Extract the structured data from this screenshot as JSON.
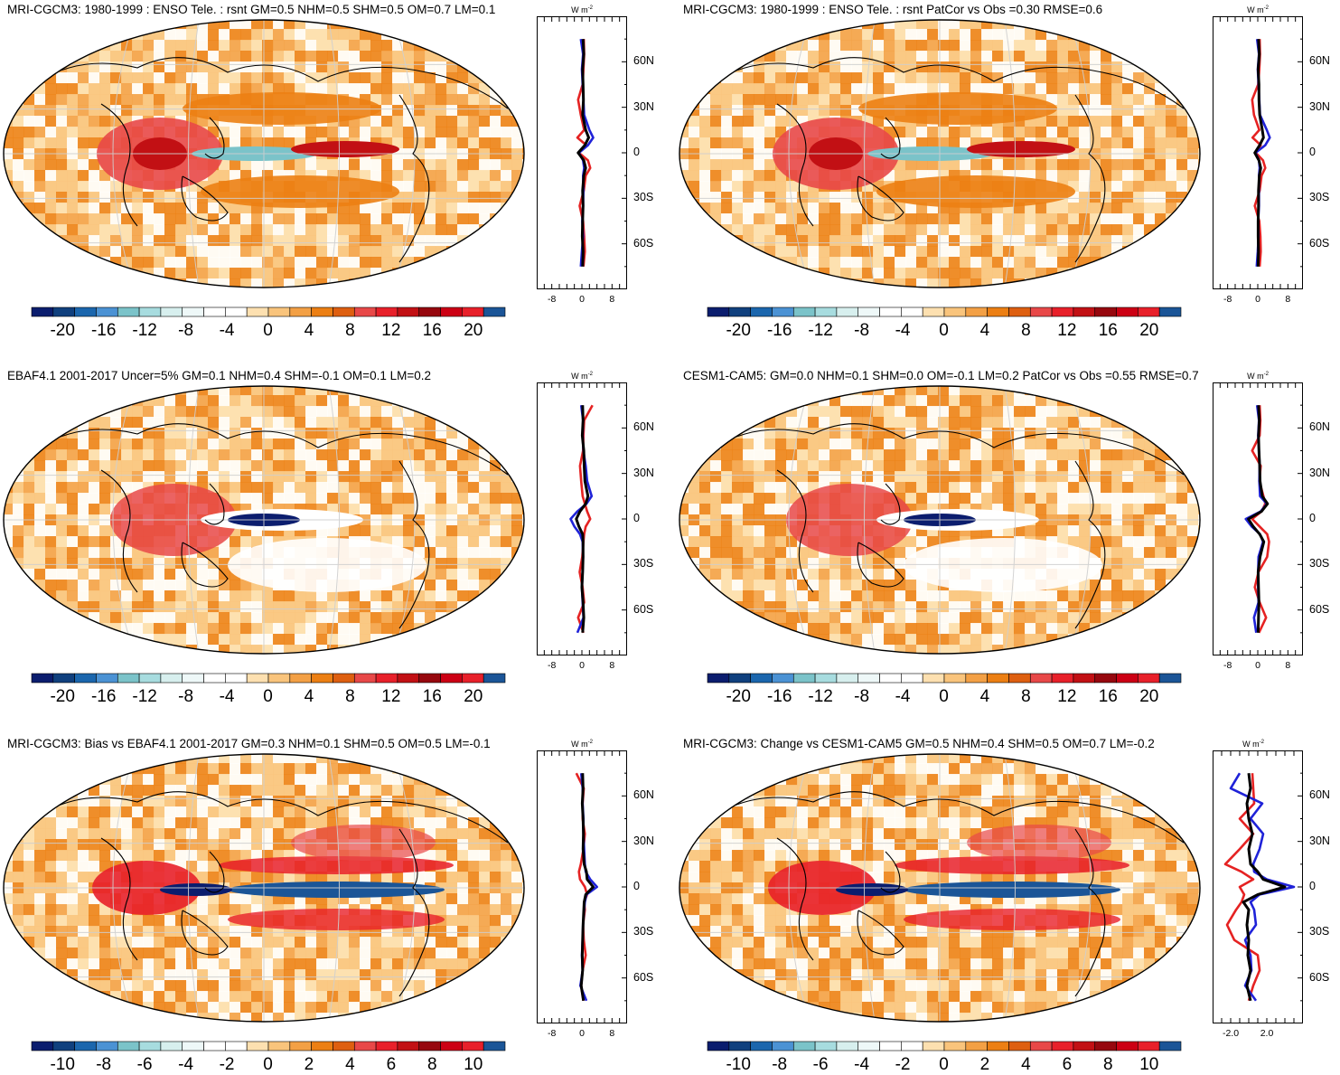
{
  "chart_data": [
    {
      "type": "heatmap",
      "title": "MRI-CGCM3: 1980-1999 : ENSO Tele. : rsnt GM=0.5 NHM=0.5 SHM=0.5 OM=0.7 LM=0.1",
      "colorbar_ticks": [
        "-20",
        "-16",
        "-12",
        "-8",
        "-4",
        "0",
        "4",
        "8",
        "12",
        "16",
        "20"
      ],
      "profile": {
        "yticks": [
          "60N",
          "30N",
          "0",
          "30S",
          "60S"
        ],
        "xticks": [
          "-8",
          "0",
          "8"
        ],
        "unit": "W m",
        "unit_exp": "-2",
        "lat": [
          75,
          65,
          55,
          45,
          35,
          25,
          15,
          10,
          5,
          0,
          -5,
          -10,
          -15,
          -25,
          -35,
          -45,
          -55,
          -65,
          -75
        ],
        "series": [
          {
            "color": "#000000",
            "values": [
              0.3,
              0.5,
              0.2,
              0.3,
              0.4,
              0.2,
              1.0,
              1.8,
              0.8,
              -1.0,
              0.5,
              1.0,
              0.5,
              0.2,
              0.3,
              0.2,
              0.1,
              0.3,
              0.2
            ]
          },
          {
            "color": "#1f22d8",
            "values": [
              -0.3,
              0.3,
              0.0,
              0.2,
              0.4,
              0.6,
              2.0,
              3.0,
              1.6,
              -0.8,
              0.3,
              0.6,
              0.3,
              0.4,
              0.3,
              0.1,
              0.3,
              0.0,
              -0.3
            ]
          },
          {
            "color": "#e52222",
            "values": [
              0.5,
              0.6,
              0.4,
              0.2,
              -1.0,
              -0.3,
              0.6,
              -1.2,
              1.2,
              -0.8,
              1.6,
              2.2,
              1.0,
              0.5,
              -0.6,
              0.3,
              0.6,
              0.8,
              0.4
            ]
          }
        ]
      }
    },
    {
      "type": "heatmap",
      "title": "MRI-CGCM3: 1980-1999 : ENSO Tele. : rsnt PatCor vs Obs =0.30 RMSE=0.6",
      "colorbar_ticks": [
        "-20",
        "-16",
        "-12",
        "-8",
        "-4",
        "0",
        "4",
        "8",
        "12",
        "16",
        "20"
      ],
      "profile": {
        "yticks": [
          "60N",
          "30N",
          "0",
          "30S",
          "60S"
        ],
        "xticks": [
          "-8",
          "0",
          "8"
        ],
        "unit": "W m",
        "unit_exp": "-2",
        "lat": [
          75,
          65,
          55,
          45,
          35,
          25,
          15,
          10,
          5,
          0,
          -5,
          -10,
          -15,
          -25,
          -35,
          -45,
          -55,
          -65,
          -75
        ],
        "series": [
          {
            "color": "#000000",
            "values": [
              0.2,
              0.4,
              0.1,
              0.3,
              0.3,
              0.5,
              1.2,
              1.5,
              0.5,
              -0.8,
              0.3,
              0.8,
              0.4,
              0.2,
              0.2,
              0.1,
              0.1,
              0.2,
              0.1
            ]
          },
          {
            "color": "#1f22d8",
            "values": [
              -0.2,
              0.3,
              0.0,
              0.2,
              0.4,
              0.6,
              2.4,
              3.2,
              2.0,
              -0.6,
              0.3,
              0.5,
              0.3,
              0.3,
              0.3,
              0.1,
              0.2,
              0.0,
              -0.3
            ]
          },
          {
            "color": "#e52222",
            "values": [
              0.5,
              0.6,
              0.4,
              0.1,
              -1.5,
              -1.0,
              0.4,
              -1.4,
              0.8,
              -0.5,
              1.4,
              2.0,
              1.0,
              0.5,
              -0.8,
              0.4,
              0.7,
              0.8,
              0.5
            ]
          }
        ]
      }
    },
    {
      "type": "heatmap",
      "title": "EBAF4.1 2001-2017 Uncer=5% GM=0.1 NHM=0.4 SHM=-0.1 OM=0.1 LM=0.2",
      "colorbar_ticks": [
        "-20",
        "-16",
        "-12",
        "-8",
        "-4",
        "0",
        "4",
        "8",
        "12",
        "16",
        "20"
      ],
      "profile": {
        "yticks": [
          "60N",
          "30N",
          "0",
          "30S",
          "60S"
        ],
        "xticks": [
          "-8",
          "0",
          "8"
        ],
        "unit": "W m",
        "unit_exp": "-2",
        "lat": [
          75,
          65,
          55,
          45,
          35,
          25,
          15,
          10,
          5,
          0,
          -5,
          -10,
          -15,
          -25,
          -35,
          -45,
          -55,
          -65,
          -75
        ],
        "series": [
          {
            "color": "#000000",
            "values": [
              0.2,
              0.3,
              0.1,
              0.5,
              0.6,
              0.8,
              1.6,
              1.0,
              -0.5,
              -1.5,
              -0.8,
              0.2,
              0.3,
              0.3,
              0.2,
              0.0,
              0.3,
              0.5,
              0.2
            ]
          },
          {
            "color": "#1f22d8",
            "values": [
              -0.2,
              0.3,
              0.2,
              0.4,
              1.0,
              1.4,
              2.6,
              1.2,
              -1.2,
              -3.0,
              -2.0,
              -0.5,
              0.2,
              0.3,
              0.2,
              0.0,
              0.2,
              0.4,
              -1.2
            ]
          },
          {
            "color": "#e52222",
            "values": [
              2.8,
              0.6,
              0.4,
              0.3,
              -0.5,
              -0.2,
              0.2,
              0.8,
              1.4,
              2.2,
              1.0,
              0.6,
              0.4,
              0.1,
              -0.6,
              0.2,
              0.6,
              -1.0,
              0.4
            ]
          }
        ]
      }
    },
    {
      "type": "heatmap",
      "title": "CESM1-CAM5: GM=0.0 NHM=0.1 SHM=0.0 OM=-0.1 LM=0.2 PatCor vs Obs =0.55 RMSE=0.7",
      "colorbar_ticks": [
        "-20",
        "-16",
        "-12",
        "-8",
        "-4",
        "0",
        "4",
        "8",
        "12",
        "16",
        "20"
      ],
      "profile": {
        "yticks": [
          "60N",
          "30N",
          "0",
          "30S",
          "60S"
        ],
        "xticks": [
          "-8",
          "0",
          "8"
        ],
        "unit": "W m",
        "unit_exp": "-2",
        "lat": [
          75,
          65,
          55,
          45,
          35,
          25,
          15,
          10,
          5,
          0,
          -5,
          -10,
          -15,
          -25,
          -35,
          -45,
          -55,
          -65,
          -75
        ],
        "series": [
          {
            "color": "#000000",
            "values": [
              0.2,
              0.4,
              0.2,
              0.3,
              0.5,
              0.6,
              1.2,
              2.6,
              1.0,
              -2.5,
              -1.2,
              0.5,
              1.6,
              0.6,
              0.1,
              0.2,
              0.3,
              0.2,
              0.1
            ]
          },
          {
            "color": "#1f22d8",
            "values": [
              -0.2,
              0.3,
              0.1,
              0.3,
              0.5,
              0.4,
              0.6,
              2.4,
              0.8,
              -3.2,
              -1.6,
              0.6,
              1.4,
              0.2,
              0.1,
              0.1,
              0.2,
              -1.0,
              -0.4
            ]
          },
          {
            "color": "#e52222",
            "values": [
              0.5,
              0.7,
              0.5,
              -1.5,
              0.8,
              0.4,
              1.5,
              2.0,
              1.0,
              -1.5,
              0.5,
              2.5,
              3.0,
              2.5,
              0.2,
              -0.8,
              0.5,
              2.2,
              0.3
            ]
          }
        ]
      }
    },
    {
      "type": "heatmap",
      "title": "MRI-CGCM3: Bias vs EBAF4.1 2001-2017 GM=0.3 NHM=0.1 SHM=0.5 OM=0.5 LM=-0.1",
      "colorbar_ticks": [
        "-10",
        "-8",
        "-6",
        "-4",
        "-2",
        "0",
        "2",
        "4",
        "6",
        "8",
        "10"
      ],
      "profile": {
        "yticks": [
          "60N",
          "30N",
          "0",
          "30S",
          "60S"
        ],
        "xticks": [
          "-8",
          "0",
          "8"
        ],
        "unit": "W m",
        "unit_exp": "-2",
        "lat": [
          75,
          65,
          55,
          45,
          35,
          25,
          15,
          10,
          5,
          0,
          -5,
          -10,
          -15,
          -25,
          -35,
          -45,
          -55,
          -65,
          -75
        ],
        "series": [
          {
            "color": "#000000",
            "values": [
              0.2,
              0.3,
              0.1,
              0.3,
              0.4,
              0.3,
              0.6,
              1.2,
              1.4,
              3.0,
              1.0,
              0.6,
              0.5,
              0.3,
              0.2,
              0.1,
              0.2,
              -0.2,
              0.4
            ]
          },
          {
            "color": "#1f22d8",
            "values": [
              -0.2,
              0.2,
              0.2,
              0.4,
              0.4,
              0.6,
              0.8,
              1.0,
              2.2,
              4.0,
              1.2,
              0.8,
              0.6,
              0.3,
              0.2,
              0.0,
              0.2,
              -0.4,
              1.2
            ]
          },
          {
            "color": "#e52222",
            "values": [
              -1.5,
              0.5,
              0.2,
              0.2,
              0.8,
              0.4,
              -0.3,
              -0.8,
              -0.5,
              0.8,
              1.4,
              0.6,
              0.8,
              0.3,
              0.5,
              1.0,
              0.2,
              -0.2,
              0.4
            ]
          }
        ]
      }
    },
    {
      "type": "heatmap",
      "title": "MRI-CGCM3: Change vs CESM1-CAM5 GM=0.5 NHM=0.4 SHM=0.5 OM=0.7 LM=-0.2",
      "colorbar_ticks": [
        "-10",
        "-8",
        "-6",
        "-4",
        "-2",
        "0",
        "2",
        "4",
        "6",
        "8",
        "10"
      ],
      "profile": {
        "yticks": [
          "60N",
          "30N",
          "0",
          "30S",
          "60S"
        ],
        "xticks": [
          "-2.0",
          "2.0"
        ],
        "unit": "W m",
        "unit_exp": "-2",
        "lat": [
          75,
          65,
          55,
          45,
          35,
          25,
          15,
          10,
          5,
          0,
          -5,
          -10,
          -15,
          -25,
          -35,
          -45,
          -55,
          -65,
          -75
        ],
        "series": [
          {
            "color": "#000000",
            "values": [
              0.0,
              0.2,
              -0.2,
              0.0,
              0.4,
              0.0,
              0.2,
              1.0,
              1.6,
              4.0,
              1.0,
              -0.6,
              0.0,
              -0.2,
              0.0,
              -0.1,
              0.2,
              -0.2,
              0.2
            ]
          },
          {
            "color": "#1f22d8",
            "values": [
              -1.0,
              -2.0,
              1.5,
              0.2,
              1.6,
              1.2,
              0.5,
              0.6,
              2.0,
              5.0,
              1.2,
              0.2,
              0.6,
              0.8,
              -0.4,
              0.2,
              0.3,
              -0.4,
              0.8
            ]
          },
          {
            "color": "#e52222",
            "values": [
              0.4,
              0.5,
              0.6,
              -1.0,
              0.5,
              -1.0,
              -2.6,
              -0.8,
              0.5,
              -1.0,
              -0.5,
              -0.8,
              -1.4,
              -2.4,
              -1.6,
              1.0,
              1.2,
              0.5,
              0.0
            ]
          }
        ]
      }
    }
  ]
}
